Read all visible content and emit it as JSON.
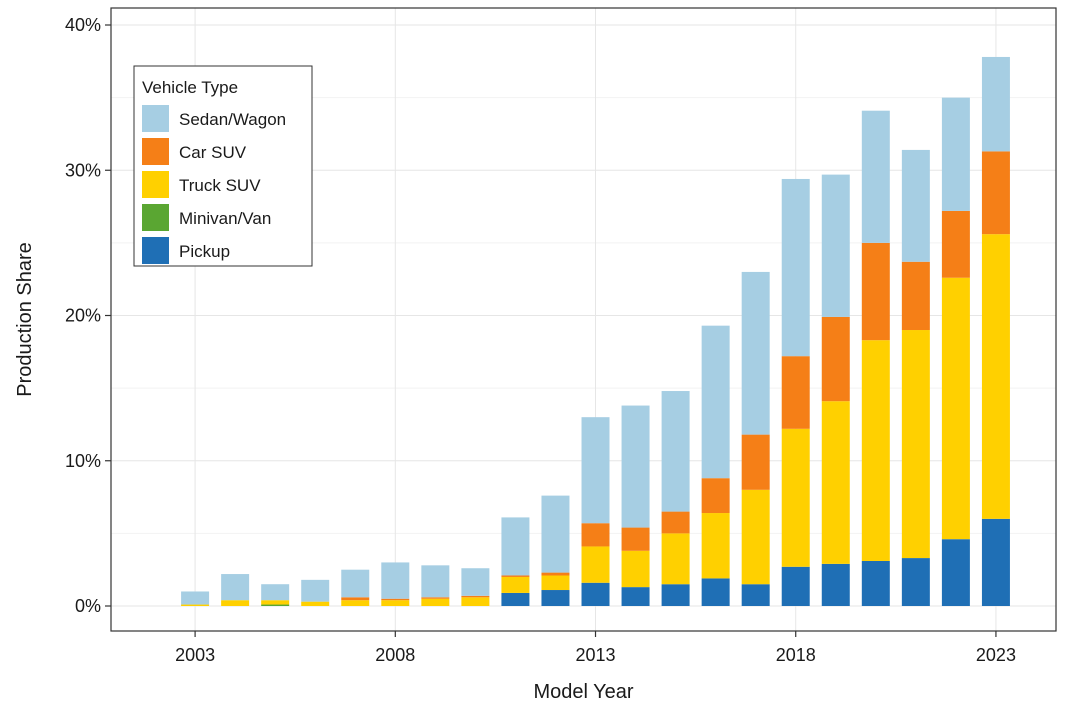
{
  "chart_data": {
    "type": "bar",
    "stacked": true,
    "title": "",
    "xlabel": "Model Year",
    "ylabel": "Production Share",
    "ylim": [
      0,
      0.4
    ],
    "y_ticks": [
      0,
      0.1,
      0.2,
      0.3,
      0.4
    ],
    "y_tick_labels": [
      "0%",
      "10%",
      "20%",
      "30%",
      "40%"
    ],
    "x_ticks": [
      2003,
      2008,
      2013,
      2018,
      2023
    ],
    "x_tick_labels": [
      "2003",
      "2008",
      "2013",
      "2018",
      "2023"
    ],
    "xlim": [
      2000.9,
      2024.5
    ],
    "grid": true,
    "legend": {
      "title": "Vehicle Type",
      "placement": "top-left",
      "order": [
        "Sedan/Wagon",
        "Car SUV",
        "Truck SUV",
        "Minivan/Van",
        "Pickup"
      ]
    },
    "categories": [
      2003,
      2004,
      2005,
      2006,
      2007,
      2008,
      2009,
      2010,
      2011,
      2012,
      2013,
      2014,
      2015,
      2016,
      2017,
      2018,
      2019,
      2020,
      2021,
      2022,
      2023
    ],
    "series": [
      {
        "name": "Pickup",
        "color": "#1f6fb5",
        "values": [
          0,
          0,
          0,
          0,
          0,
          0,
          0,
          0,
          0.009,
          0.011,
          0.016,
          0.013,
          0.015,
          0.019,
          0.015,
          0.027,
          0.029,
          0.031,
          0.033,
          0.046,
          0.06
        ]
      },
      {
        "name": "Minivan/Van",
        "color": "#5aa632",
        "values": [
          0,
          0,
          0.001,
          0,
          0,
          0,
          0,
          0,
          0,
          0,
          0,
          0,
          0,
          0,
          0,
          0,
          0,
          0,
          0,
          0,
          0
        ]
      },
      {
        "name": "Truck SUV",
        "color": "#ffd000",
        "values": [
          0.001,
          0.004,
          0.003,
          0.003,
          0.004,
          0.004,
          0.005,
          0.006,
          0.011,
          0.01,
          0.025,
          0.025,
          0.035,
          0.045,
          0.065,
          0.095,
          0.112,
          0.152,
          0.157,
          0.18,
          0.196
        ]
      },
      {
        "name": "Car SUV",
        "color": "#f57f17",
        "values": [
          0,
          0,
          0,
          0,
          0.002,
          0.001,
          0.001,
          0.001,
          0.001,
          0.002,
          0.016,
          0.016,
          0.015,
          0.024,
          0.038,
          0.05,
          0.058,
          0.067,
          0.047,
          0.046,
          0.057
        ]
      },
      {
        "name": "Sedan/Wagon",
        "color": "#a6cee3",
        "values": [
          0.009,
          0.018,
          0.011,
          0.015,
          0.019,
          0.025,
          0.022,
          0.019,
          0.04,
          0.053,
          0.073,
          0.084,
          0.083,
          0.105,
          0.112,
          0.122,
          0.098,
          0.091,
          0.077,
          0.078,
          0.065
        ]
      }
    ]
  }
}
